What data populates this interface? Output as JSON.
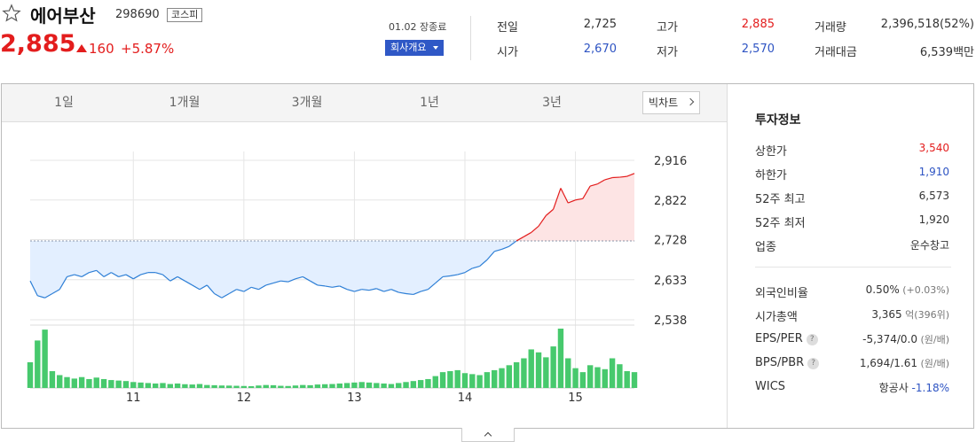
{
  "header": {
    "name": "에어부산",
    "code": "298690",
    "market": "코스피",
    "price": "2,885",
    "change": "160",
    "change_pct": "+5.87%",
    "date_status": "01.02 장종료",
    "company_button": "회사개요",
    "quotes": [
      {
        "label": "전일",
        "value": "2,725",
        "tone": "neutral"
      },
      {
        "label": "시가",
        "value": "2,670",
        "tone": "down"
      },
      {
        "label": "고가",
        "value": "2,885",
        "tone": "up"
      },
      {
        "label": "저가",
        "value": "2,570",
        "tone": "down"
      },
      {
        "label": "거래량",
        "value": "2,396,518(52%)",
        "tone": "neutral"
      },
      {
        "label": "거래대금",
        "value": "6,539백만",
        "tone": "neutral"
      }
    ]
  },
  "tabs": [
    "1일",
    "1개월",
    "3개월",
    "1년",
    "3년"
  ],
  "active_tab": 0,
  "bigchart_label": "빅차트",
  "chart_data": {
    "type": "area",
    "title": "",
    "baseline": 2725,
    "y_ticks": [
      2916,
      2822,
      2728,
      2633,
      2538
    ],
    "y_tick_labels": [
      "2,916",
      "2,822",
      "2,728",
      "2,633",
      "2,538"
    ],
    "ylim": [
      2538,
      2916
    ],
    "x_ticks": [
      {
        "label": "11",
        "index": 14
      },
      {
        "label": "12",
        "index": 29
      },
      {
        "label": "13",
        "index": 44
      },
      {
        "label": "14",
        "index": 59
      },
      {
        "label": "15",
        "index": 74
      }
    ],
    "n_points": 83,
    "price": [
      2630,
      2595,
      2590,
      2600,
      2610,
      2640,
      2645,
      2640,
      2650,
      2655,
      2640,
      2650,
      2640,
      2645,
      2635,
      2645,
      2650,
      2650,
      2645,
      2630,
      2640,
      2630,
      2620,
      2610,
      2620,
      2600,
      2590,
      2600,
      2610,
      2605,
      2615,
      2610,
      2620,
      2625,
      2630,
      2628,
      2635,
      2640,
      2630,
      2620,
      2618,
      2615,
      2618,
      2610,
      2605,
      2610,
      2608,
      2612,
      2605,
      2610,
      2603,
      2600,
      2598,
      2605,
      2610,
      2625,
      2640,
      2642,
      2645,
      2650,
      2660,
      2665,
      2680,
      2700,
      2705,
      2712,
      2725,
      2735,
      2745,
      2760,
      2785,
      2800,
      2850,
      2815,
      2822,
      2825,
      2855,
      2860,
      2870,
      2875,
      2876,
      2878,
      2885
    ],
    "volume": [
      260,
      480,
      590,
      170,
      130,
      110,
      95,
      110,
      90,
      105,
      90,
      80,
      75,
      70,
      60,
      55,
      50,
      45,
      50,
      40,
      45,
      38,
      35,
      40,
      30,
      28,
      25,
      24,
      22,
      20,
      18,
      25,
      30,
      28,
      22,
      20,
      25,
      30,
      28,
      35,
      38,
      40,
      45,
      50,
      55,
      60,
      55,
      50,
      45,
      40,
      50,
      60,
      70,
      80,
      90,
      120,
      160,
      170,
      180,
      150,
      140,
      130,
      160,
      180,
      200,
      230,
      260,
      300,
      390,
      360,
      310,
      420,
      600,
      300,
      200,
      160,
      230,
      210,
      190,
      300,
      240,
      170,
      160
    ]
  },
  "side": {
    "title": "투자정보",
    "rows": [
      {
        "label": "상한가",
        "value": "3,540",
        "sub": "",
        "tone": "up",
        "q": false
      },
      {
        "label": "하한가",
        "value": "1,910",
        "sub": "",
        "tone": "down",
        "q": false
      },
      {
        "label": "52주 최고",
        "value": "6,573",
        "sub": "",
        "tone": "neutral",
        "q": false
      },
      {
        "label": "52주 최저",
        "value": "1,920",
        "sub": "",
        "tone": "neutral",
        "q": false
      },
      {
        "label": "업종",
        "value": "운수창고",
        "sub": "",
        "tone": "neutral",
        "q": false
      },
      {
        "label": "외국인비율",
        "value": "0.50%",
        "sub": "(+0.03%)",
        "tone": "neutral",
        "q": false
      },
      {
        "label": "시가총액",
        "value": "3,365",
        "sub": "억(396위)",
        "tone": "neutral",
        "q": false
      },
      {
        "label": "EPS/PER",
        "value": "-5,374/0.0",
        "sub": "(원/배)",
        "tone": "neutral",
        "q": true
      },
      {
        "label": "BPS/PBR",
        "value": "1,694/1.61",
        "sub": "(원/배)",
        "tone": "neutral",
        "q": true
      },
      {
        "label": "WICS",
        "value": "항공사",
        "sub": "-1.18%",
        "tone": "neutral",
        "q": false
      }
    ]
  }
}
